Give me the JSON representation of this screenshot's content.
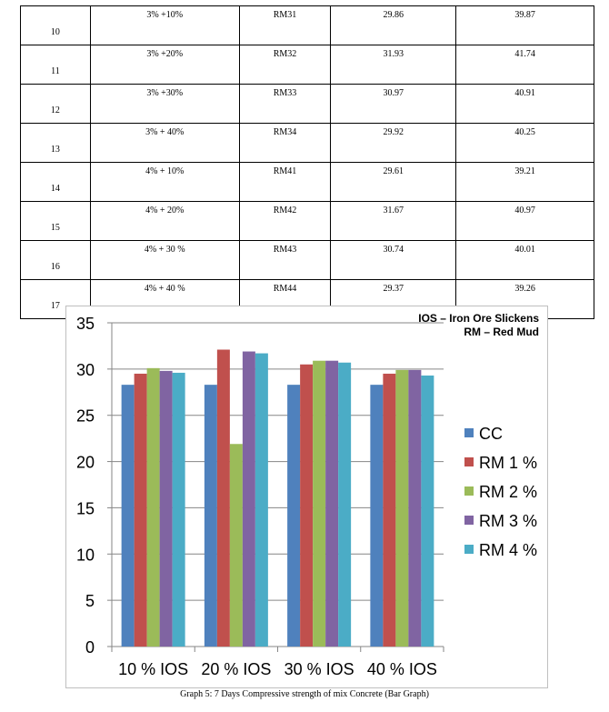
{
  "table": {
    "rows": [
      {
        "no": "10",
        "mix": "3% +10%",
        "code": "RM31",
        "v1": "29.86",
        "v2": "39.87"
      },
      {
        "no": "11",
        "mix": "3% +20%",
        "code": "RM32",
        "v1": "31.93",
        "v2": "41.74"
      },
      {
        "no": "12",
        "mix": "3% +30%",
        "code": "RM33",
        "v1": "30.97",
        "v2": "40.91"
      },
      {
        "no": "13",
        "mix": "3% + 40%",
        "code": "RM34",
        "v1": "29.92",
        "v2": "40.25"
      },
      {
        "no": "14",
        "mix": "4% + 10%",
        "code": "RM41",
        "v1": "29.61",
        "v2": "39.21"
      },
      {
        "no": "15",
        "mix": "4% + 20%",
        "code": "RM42",
        "v1": "31.67",
        "v2": "40.97"
      },
      {
        "no": "16",
        "mix": "4% + 30 %",
        "code": "RM43",
        "v1": "30.74",
        "v2": "40.01"
      },
      {
        "no": "17",
        "mix": "4% + 40 %",
        "code": "RM44",
        "v1": "29.37",
        "v2": "39.26"
      }
    ]
  },
  "chart_data": {
    "type": "bar",
    "annotations": [
      "IOS – Iron Ore Slickens",
      "RM – Red Mud"
    ],
    "categories": [
      "10 % IOS",
      "20 % IOS",
      "30 % IOS",
      "40 % IOS"
    ],
    "series": [
      {
        "name": "CC",
        "color": "#4f81bd",
        "values": [
          28.3,
          28.3,
          28.3,
          28.3
        ]
      },
      {
        "name": "RM 1 %",
        "color": "#c0504d",
        "values": [
          29.5,
          32.1,
          30.5,
          29.5
        ]
      },
      {
        "name": "RM 2 %",
        "color": "#9bbb59",
        "values": [
          30.1,
          21.9,
          30.9,
          29.9
        ]
      },
      {
        "name": "RM 3 %",
        "color": "#8064a2",
        "values": [
          29.8,
          31.9,
          30.9,
          29.9
        ]
      },
      {
        "name": "RM 4 %",
        "color": "#4bacc6",
        "values": [
          29.6,
          31.7,
          30.7,
          29.3
        ]
      }
    ],
    "ylim": [
      0,
      35
    ],
    "yticks": [
      "0",
      "5",
      "10",
      "15",
      "20",
      "25",
      "30",
      "35"
    ],
    "grid": true,
    "legend": "right"
  },
  "caption": "Graph 5: 7 Days Compressive strength of mix Concrete (Bar Graph)"
}
